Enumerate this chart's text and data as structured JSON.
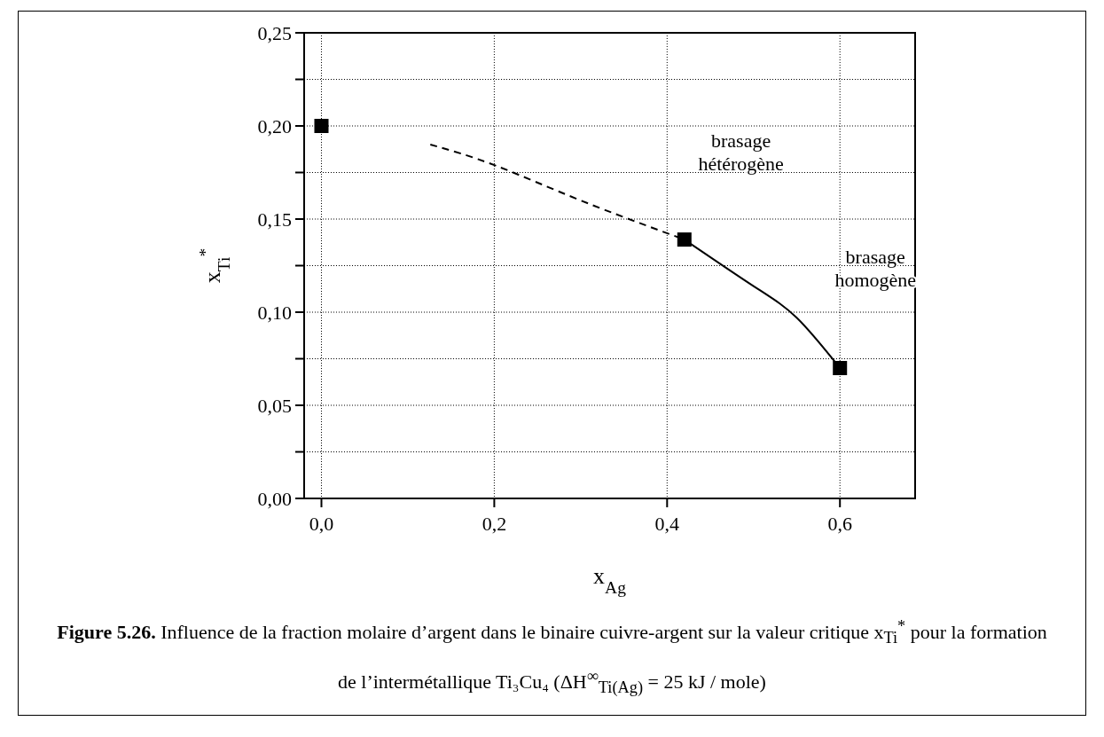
{
  "chart_data": {
    "type": "scatter",
    "title": "Figure 5.26.",
    "xlabel": "x$_{Ag}$",
    "ylabel": "x$_{Ti}$$^{*}$",
    "xlim": [
      -0.02,
      0.687
    ],
    "ylim": [
      0,
      0.25
    ],
    "xticks": [
      {
        "value": 0,
        "label": "0,0"
      },
      {
        "value": 0.2,
        "label": "0,2"
      },
      {
        "value": 0.4,
        "label": "0,4"
      },
      {
        "value": 0.6,
        "label": "0,6"
      }
    ],
    "yticks": [
      {
        "value": 0,
        "label": "0,00"
      },
      {
        "value": 0.025,
        "label": null
      },
      {
        "value": 0.05,
        "label": "0,05"
      },
      {
        "value": 0.075,
        "label": null
      },
      {
        "value": 0.1,
        "label": "0,10"
      },
      {
        "value": 0.125,
        "label": null
      },
      {
        "value": 0.15,
        "label": "0,15"
      },
      {
        "value": 0.175,
        "label": null
      },
      {
        "value": 0.2,
        "label": "0,20"
      },
      {
        "value": 0.225,
        "label": null
      },
      {
        "value": 0.25,
        "label": "0,25"
      }
    ],
    "grid": true,
    "series": [
      {
        "type": "line",
        "line_style": "dashed",
        "marker": "none",
        "color": "#000000",
        "x": [
          0.126,
          0.2,
          0.3,
          0.42
        ],
        "values": [
          0.19,
          0.179,
          0.16,
          0.139
        ]
      },
      {
        "type": "line",
        "line_style": "solid",
        "marker": "none",
        "color": "#000000",
        "x": [
          0.42,
          0.5,
          0.55,
          0.6
        ],
        "values": [
          0.139,
          0.114,
          0.097,
          0.07
        ]
      },
      {
        "marker": "square",
        "color": "#000000",
        "x": [
          0,
          0.42,
          0.6
        ],
        "values": [
          0.2,
          0.139,
          0.07
        ]
      }
    ],
    "annotations": [
      "brasage\nhétérogène",
      "brasage\nhomogène",
      "Influence de la fraction molaire d’argent dans le binaire cuivre-argent sur la valeur critique x$_{Ti}$$^{*}$ pour la formation de l’intermétallique Ti₃Cu₄ (ΔH$^{∞}$$_{Ti(Ag)}$ = 25 kJ / mole)"
    ]
  }
}
